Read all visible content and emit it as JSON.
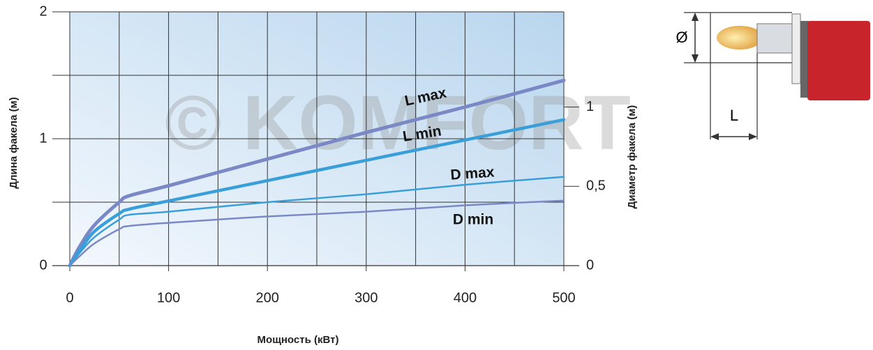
{
  "chart_data": {
    "type": "line",
    "xlabel": "Мощность (кВт)",
    "ylabel": "Длина факела (м)",
    "y2label": "Диаметр факела (м)",
    "watermark": "© KOMFORT",
    "x": [
      0,
      10,
      25,
      50,
      60,
      100,
      200,
      300,
      400,
      500
    ],
    "series": [
      {
        "name": "L max",
        "color": "#7a88c6",
        "values": [
          0,
          0.15,
          0.32,
          0.5,
          0.55,
          0.63,
          0.84,
          1.05,
          1.25,
          1.46
        ]
      },
      {
        "name": "L min",
        "color": "#3a9fd8",
        "values": [
          0,
          0.12,
          0.27,
          0.41,
          0.445,
          0.51,
          0.67,
          0.83,
          0.99,
          1.15
        ]
      },
      {
        "name": "D max",
        "color": "#3a9fd8",
        "axis": "y2",
        "values": [
          0,
          0.08,
          0.18,
          0.29,
          0.32,
          0.34,
          0.4,
          0.45,
          0.51,
          0.56
        ]
      },
      {
        "name": "D min",
        "color": "#7a88c6",
        "axis": "y2",
        "values": [
          0,
          0.06,
          0.14,
          0.23,
          0.25,
          0.27,
          0.31,
          0.34,
          0.38,
          0.41
        ]
      }
    ],
    "xlim": [
      0,
      500
    ],
    "xticks": [
      0,
      100,
      200,
      300,
      400,
      500
    ],
    "xgrid": [
      0,
      50,
      100,
      150,
      200,
      250,
      300,
      350,
      400,
      450,
      500
    ],
    "ylim": [
      0,
      2
    ],
    "yticks": [
      0,
      1,
      2
    ],
    "ygrid": [
      0.5,
      1,
      1.5,
      2
    ],
    "y2lim": [
      0,
      1.6
    ],
    "y2ticks": [
      0,
      {
        "value": 0.5,
        "label": "0,5"
      },
      1
    ],
    "grid": true
  },
  "diagram": {
    "diameter_label": "Ø",
    "length_label": "L"
  }
}
